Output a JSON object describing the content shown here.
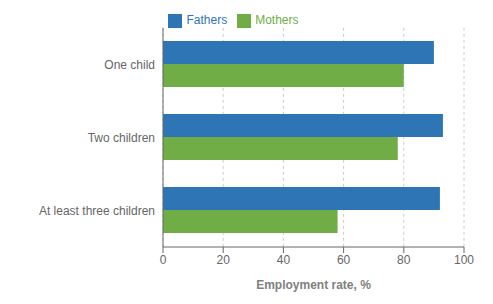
{
  "chart_data": {
    "type": "bar",
    "orientation": "horizontal",
    "categories": [
      "One child",
      "Two children",
      "At least three children"
    ],
    "series": [
      {
        "name": "Fathers",
        "color": "#2E75B6",
        "values": [
          90,
          93,
          92
        ]
      },
      {
        "name": "Mothers",
        "color": "#70AD47",
        "values": [
          80,
          78,
          58
        ]
      }
    ],
    "xlabel": "Employment rate, %",
    "xlim": [
      0,
      100
    ],
    "xticks": [
      0,
      20,
      40,
      60,
      80,
      100
    ],
    "grid": true,
    "legend": "top"
  }
}
